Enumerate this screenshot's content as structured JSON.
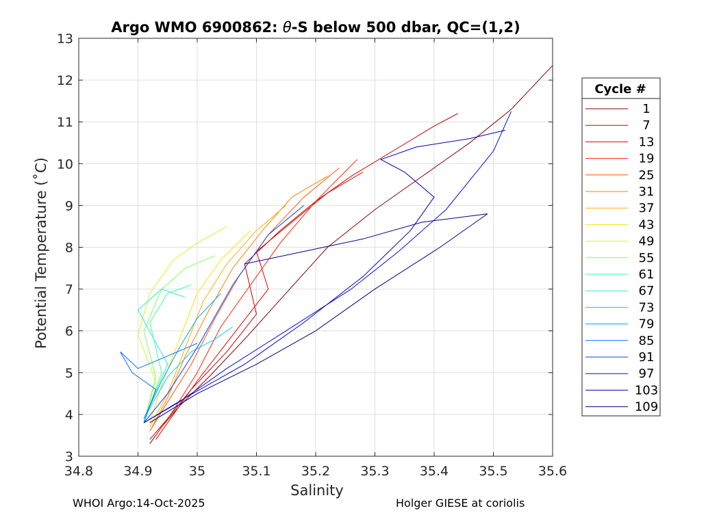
{
  "chart_data": {
    "type": "line",
    "title_prefix": "Argo WMO 6900862: ",
    "title_theta": "θ",
    "title_suffix": "-S below 500 dbar,  QC=(1,2)",
    "xlabel": "Salinity",
    "ylabel": "Potential Temperature (˚C)",
    "xlim": [
      34.8,
      35.6
    ],
    "ylim": [
      3,
      13
    ],
    "xticks": [
      34.8,
      34.9,
      35,
      35.1,
      35.2,
      35.3,
      35.4,
      35.5,
      35.6
    ],
    "xtick_labels": [
      "34.8",
      "34.9",
      "35",
      "35.1",
      "35.2",
      "35.3",
      "35.4",
      "35.5",
      "35.6"
    ],
    "yticks": [
      3,
      4,
      5,
      6,
      7,
      8,
      9,
      10,
      11,
      12,
      13
    ],
    "ytick_labels": [
      "3",
      "4",
      "5",
      "6",
      "7",
      "8",
      "9",
      "10",
      "11",
      "12",
      "13"
    ],
    "grid": true,
    "legend": {
      "title": "Cycle #",
      "position": "right-outside",
      "entries": [
        {
          "label": "1",
          "color": "#800000"
        },
        {
          "label": "7",
          "color": "#c00000"
        },
        {
          "label": "13",
          "color": "#e00000"
        },
        {
          "label": "19",
          "color": "#ff2000"
        },
        {
          "label": "25",
          "color": "#ff5000"
        },
        {
          "label": "31",
          "color": "#ff8000"
        },
        {
          "label": "37",
          "color": "#ffb000"
        },
        {
          "label": "43",
          "color": "#ffe000"
        },
        {
          "label": "49",
          "color": "#c0ff20"
        },
        {
          "label": "55",
          "color": "#80ff60"
        },
        {
          "label": "61",
          "color": "#40ffa0"
        },
        {
          "label": "67",
          "color": "#20f0d0"
        },
        {
          "label": "73",
          "color": "#00d0ff"
        },
        {
          "label": "79",
          "color": "#00a0ff"
        },
        {
          "label": "85",
          "color": "#0070ff"
        },
        {
          "label": "91",
          "color": "#0040ff"
        },
        {
          "label": "97",
          "color": "#0010e0"
        },
        {
          "label": "103",
          "color": "#0000b0"
        },
        {
          "label": "109",
          "color": "#000080"
        }
      ]
    },
    "series": [
      {
        "name": "1",
        "color": "#800000",
        "x": [
          34.92,
          34.94,
          34.97,
          35.02,
          35.08,
          35.15,
          35.22,
          35.3,
          35.38,
          35.46,
          35.53,
          35.6
        ],
        "y": [
          3.3,
          3.7,
          4.2,
          4.9,
          5.8,
          6.9,
          8.0,
          8.9,
          9.7,
          10.5,
          11.3,
          12.35
        ]
      },
      {
        "name": "7",
        "color": "#c00000",
        "x": [
          34.92,
          34.95,
          34.99,
          35.05,
          35.1,
          35.08,
          35.14,
          35.2,
          35.26,
          35.33,
          35.4,
          35.44
        ],
        "y": [
          3.4,
          3.9,
          4.6,
          5.5,
          6.4,
          7.6,
          8.4,
          9.1,
          9.7,
          10.3,
          10.9,
          11.2
        ]
      },
      {
        "name": "13",
        "color": "#e00000",
        "x": [
          34.93,
          34.96,
          35.0,
          35.06,
          35.12,
          35.1,
          35.16,
          35.22,
          35.28
        ],
        "y": [
          3.4,
          4.0,
          4.8,
          5.9,
          7.0,
          7.9,
          8.6,
          9.3,
          9.8
        ]
      },
      {
        "name": "19",
        "color": "#ff2000",
        "x": [
          34.93,
          34.96,
          35.0,
          35.04,
          35.09,
          35.14,
          35.2,
          35.27
        ],
        "y": [
          3.5,
          4.1,
          5.0,
          6.1,
          7.1,
          8.1,
          9.1,
          10.1
        ]
      },
      {
        "name": "25",
        "color": "#ff5000",
        "x": [
          34.92,
          34.95,
          34.99,
          35.03,
          35.07,
          35.12,
          35.18,
          35.24
        ],
        "y": [
          3.6,
          4.3,
          5.2,
          6.3,
          7.3,
          8.3,
          9.2,
          9.9
        ]
      },
      {
        "name": "31",
        "color": "#ff8000",
        "x": [
          34.92,
          34.95,
          34.98,
          35.02,
          35.06,
          35.11,
          35.16,
          35.22
        ],
        "y": [
          3.6,
          4.4,
          5.4,
          6.5,
          7.5,
          8.4,
          9.2,
          9.7
        ]
      },
      {
        "name": "37",
        "color": "#ffb000",
        "x": [
          34.92,
          34.95,
          34.98,
          35.01,
          35.05,
          35.1,
          35.15
        ],
        "y": [
          3.7,
          4.5,
          5.6,
          6.7,
          7.6,
          8.4,
          9.0
        ]
      },
      {
        "name": "43",
        "color": "#ffe000",
        "x": [
          34.92,
          34.94,
          34.97,
          35.0,
          35.04,
          35.09
        ],
        "y": [
          3.8,
          4.7,
          5.8,
          6.9,
          7.7,
          8.4
        ]
      },
      {
        "name": "49",
        "color": "#c0ff20",
        "x": [
          34.91,
          34.93,
          34.9,
          34.92,
          34.96,
          35.0,
          35.05
        ],
        "y": [
          3.8,
          4.8,
          5.9,
          6.9,
          7.7,
          8.1,
          8.5
        ]
      },
      {
        "name": "55",
        "color": "#80ff60",
        "x": [
          34.91,
          34.93,
          34.91,
          34.94,
          34.98,
          35.03
        ],
        "y": [
          3.8,
          4.9,
          6.0,
          7.0,
          7.5,
          7.8
        ]
      },
      {
        "name": "61",
        "color": "#40ffa0",
        "x": [
          34.91,
          34.94,
          34.92,
          34.95,
          34.99
        ],
        "y": [
          3.8,
          5.0,
          6.2,
          6.9,
          7.1
        ]
      },
      {
        "name": "67",
        "color": "#20f0d0",
        "x": [
          34.91,
          34.95,
          34.9,
          34.94,
          34.98
        ],
        "y": [
          3.9,
          5.2,
          6.5,
          7.0,
          6.8
        ]
      },
      {
        "name": "73",
        "color": "#00d0ff",
        "x": [
          34.91,
          34.95,
          34.99,
          35.03,
          35.06
        ],
        "y": [
          3.9,
          4.9,
          5.5,
          5.8,
          6.1
        ]
      },
      {
        "name": "79",
        "color": "#00a0ff",
        "x": [
          34.91,
          34.94,
          34.97,
          35.0,
          35.04
        ],
        "y": [
          3.9,
          4.8,
          5.6,
          6.3,
          6.9
        ]
      },
      {
        "name": "85",
        "color": "#0070ff",
        "x": [
          34.91,
          34.93,
          34.89,
          34.87,
          34.9,
          34.95,
          35.0
        ],
        "y": [
          3.8,
          4.6,
          5.0,
          5.5,
          5.1,
          5.4,
          5.7
        ]
      },
      {
        "name": "91",
        "color": "#0040ff",
        "x": [
          34.91,
          34.95,
          35.0,
          35.06,
          35.12,
          35.18
        ],
        "y": [
          3.8,
          4.5,
          5.6,
          7.1,
          8.3,
          9.0
        ]
      },
      {
        "name": "97",
        "color": "#0010e0",
        "x": [
          34.91,
          34.97,
          35.05,
          35.15,
          35.26,
          35.34,
          35.42,
          35.5,
          35.53
        ],
        "y": [
          3.8,
          4.3,
          5.1,
          6.0,
          7.0,
          7.9,
          8.9,
          10.3,
          11.25
        ]
      },
      {
        "name": "103",
        "color": "#0000b0",
        "x": [
          34.91,
          34.98,
          35.08,
          35.18,
          35.28,
          35.36,
          35.4,
          35.35,
          35.31,
          35.37,
          35.46,
          35.52
        ],
        "y": [
          3.8,
          4.4,
          5.2,
          6.2,
          7.3,
          8.4,
          9.2,
          9.8,
          10.1,
          10.4,
          10.6,
          10.8
        ]
      },
      {
        "name": "109",
        "color": "#000080",
        "x": [
          34.92,
          35.0,
          35.1,
          35.2,
          35.3,
          35.41,
          35.49,
          35.38,
          35.28,
          35.18,
          35.08
        ],
        "y": [
          3.8,
          4.5,
          5.2,
          6.0,
          7.0,
          8.0,
          8.8,
          8.6,
          8.2,
          7.9,
          7.6
        ]
      }
    ]
  },
  "footer": {
    "left": "WHOI Argo:14-Oct-2025",
    "right": "Holger GIESE at coriolis"
  }
}
